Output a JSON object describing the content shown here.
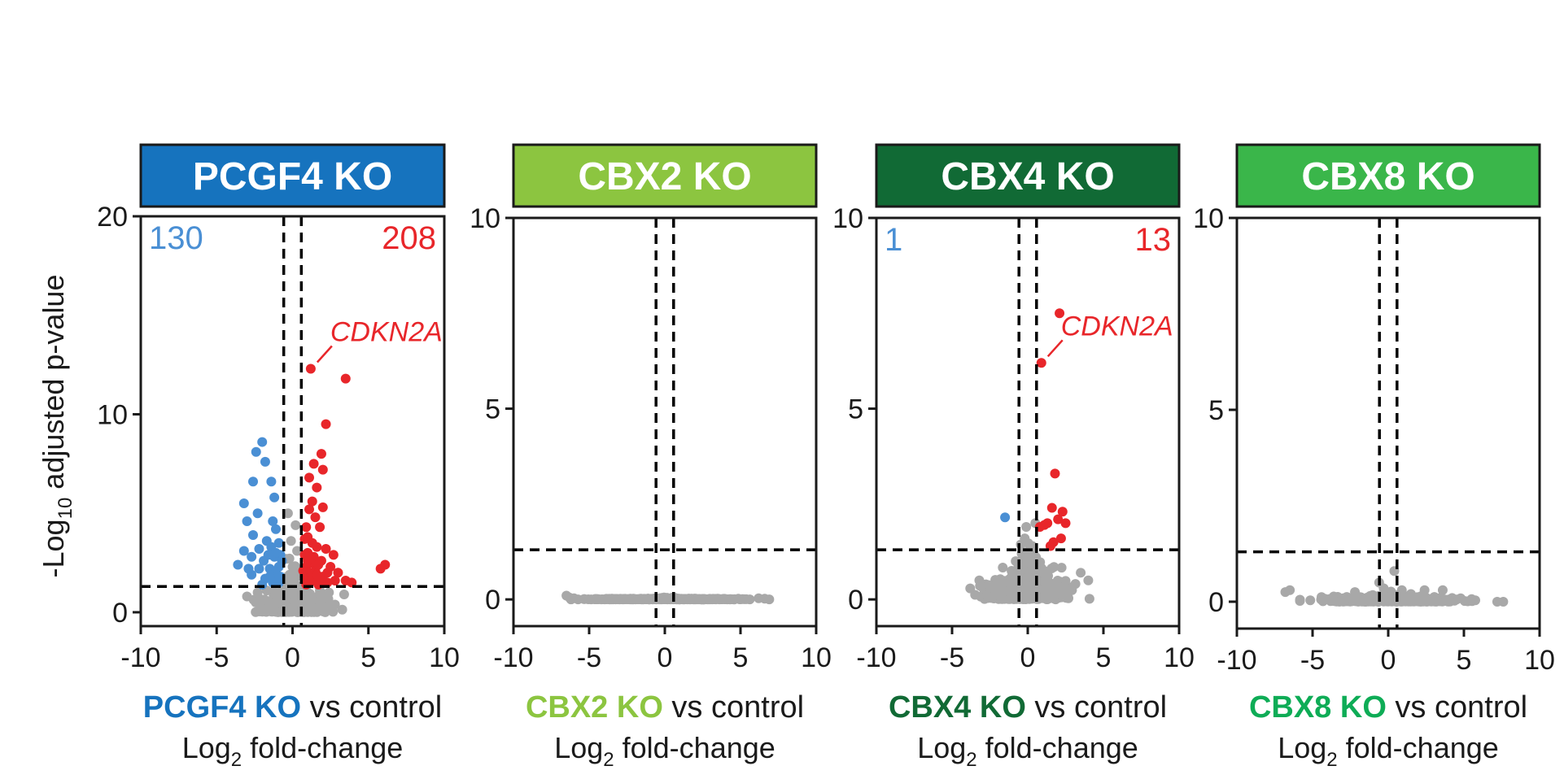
{
  "y_axis_label": {
    "main": "-Log",
    "sub": "10",
    "rest": " adjusted p-value"
  },
  "x_axis_label": {
    "pre": "Log",
    "sub": "2",
    "post": " fold-change"
  },
  "vs_text": " vs control",
  "colors": {
    "down": "#4a8fd4",
    "up": "#e8262a",
    "ns": "#a8a8a8"
  },
  "chart_data": [
    {
      "type": "scatter",
      "title": "PCGF4 KO",
      "header_color": "#1673be",
      "xlabel_gene": "PCGF4 KO",
      "xlabel_color": "#1673be",
      "xlim": [
        -10,
        10
      ],
      "ylim": [
        -0.7,
        20
      ],
      "xticks": [
        -10,
        -5,
        0,
        5,
        10
      ],
      "yticks": [
        0,
        10,
        20
      ],
      "thresholds": {
        "x": [
          -0.58,
          0.58
        ],
        "y": 1.3
      },
      "counts": {
        "down": "130",
        "up": "208"
      },
      "annotation": {
        "label": "CDKN2A",
        "point": [
          1.2,
          12.3
        ]
      },
      "cloud": {
        "n": 650,
        "sx": 1.0,
        "sy": 0.35,
        "xr": [
          -4.2,
          4.5
        ]
      },
      "points_down": [
        [
          -2.0,
          8.6
        ],
        [
          -2.4,
          8.1
        ],
        [
          -1.8,
          7.6
        ],
        [
          -2.6,
          6.6
        ],
        [
          -1.4,
          6.6
        ],
        [
          -3.2,
          5.5
        ],
        [
          -1.2,
          5.8
        ],
        [
          -2.3,
          5.0
        ],
        [
          -1.3,
          4.6
        ],
        [
          -3.0,
          4.6
        ],
        [
          -1.1,
          4.2
        ],
        [
          -2.6,
          3.9
        ],
        [
          -1.7,
          3.6
        ],
        [
          -3.2,
          3.1
        ],
        [
          -2.2,
          3.2
        ],
        [
          -1.4,
          3.3
        ],
        [
          -0.9,
          3.5
        ],
        [
          -2.7,
          2.8
        ],
        [
          -1.9,
          2.6
        ],
        [
          -1.2,
          2.8
        ],
        [
          -0.8,
          2.9
        ],
        [
          -3.6,
          2.4
        ],
        [
          -2.2,
          2.2
        ],
        [
          -1.5,
          2.2
        ],
        [
          -0.9,
          2.3
        ],
        [
          -1.1,
          2.0
        ],
        [
          -2.7,
          1.9
        ],
        [
          -1.8,
          1.7
        ],
        [
          -0.8,
          1.8
        ],
        [
          -1.3,
          1.5
        ],
        [
          -2.0,
          1.4
        ],
        [
          -0.9,
          1.5
        ],
        [
          -1.1,
          3.0
        ],
        [
          -1.6,
          2.9
        ],
        [
          -0.7,
          2.6
        ],
        [
          -2.9,
          2.2
        ],
        [
          -1.0,
          1.6
        ],
        [
          -1.5,
          1.8
        ]
      ],
      "points_up": [
        [
          1.2,
          12.3
        ],
        [
          3.5,
          11.8
        ],
        [
          2.2,
          9.5
        ],
        [
          1.9,
          8.0
        ],
        [
          1.4,
          7.5
        ],
        [
          2.0,
          7.2
        ],
        [
          1.1,
          6.8
        ],
        [
          1.6,
          6.3
        ],
        [
          1.3,
          5.6
        ],
        [
          2.0,
          5.3
        ],
        [
          1.1,
          5.2
        ],
        [
          1.5,
          4.8
        ],
        [
          0.9,
          4.3
        ],
        [
          1.8,
          4.3
        ],
        [
          1.0,
          3.8
        ],
        [
          1.3,
          3.5
        ],
        [
          0.8,
          3.7
        ],
        [
          1.6,
          3.3
        ],
        [
          2.2,
          3.2
        ],
        [
          1.0,
          3.0
        ],
        [
          1.4,
          2.8
        ],
        [
          0.8,
          2.9
        ],
        [
          1.9,
          2.6
        ],
        [
          1.2,
          2.5
        ],
        [
          2.5,
          2.3
        ],
        [
          0.9,
          2.3
        ],
        [
          1.5,
          2.1
        ],
        [
          3.0,
          2.0
        ],
        [
          1.1,
          1.9
        ],
        [
          2.0,
          1.8
        ],
        [
          0.8,
          1.8
        ],
        [
          1.4,
          1.7
        ],
        [
          3.5,
          1.6
        ],
        [
          2.3,
          1.5
        ],
        [
          1.0,
          1.5
        ],
        [
          1.7,
          1.4
        ],
        [
          0.9,
          1.4
        ],
        [
          5.8,
          2.2
        ],
        [
          6.1,
          2.4
        ],
        [
          3.9,
          1.5
        ],
        [
          2.8,
          1.6
        ],
        [
          1.2,
          2.0
        ],
        [
          1.7,
          2.4
        ],
        [
          2.7,
          2.9
        ],
        [
          0.7,
          2.1
        ],
        [
          1.3,
          1.6
        ],
        [
          1.9,
          1.5
        ],
        [
          1.0,
          2.6
        ],
        [
          2.3,
          2.0
        ],
        [
          1.6,
          1.9
        ]
      ],
      "points_ns_extra": [
        [
          -0.3,
          5.0
        ],
        [
          0.2,
          4.4
        ],
        [
          -0.1,
          3.6
        ],
        [
          0.3,
          3.1
        ],
        [
          -0.4,
          2.7
        ],
        [
          0.0,
          2.3
        ],
        [
          0.4,
          2.0
        ],
        [
          -0.2,
          1.9
        ],
        [
          0.1,
          1.7
        ],
        [
          -2.3,
          1.0
        ],
        [
          2.4,
          1.0
        ],
        [
          -3.0,
          0.8
        ],
        [
          3.4,
          0.9
        ],
        [
          -1.7,
          1.1
        ],
        [
          1.8,
          1.1
        ]
      ]
    },
    {
      "type": "scatter",
      "title": "CBX2 KO",
      "header_color": "#8cc540",
      "xlabel_gene": "CBX2 KO",
      "xlabel_color": "#8cc540",
      "xlim": [
        -10,
        10
      ],
      "ylim": [
        -0.7,
        10
      ],
      "xticks": [
        -10,
        -5,
        0,
        5,
        10
      ],
      "yticks": [
        0,
        5,
        10
      ],
      "thresholds": {
        "x": [
          -0.58,
          0.58
        ],
        "y": 1.3
      },
      "counts": {
        "down": "",
        "up": ""
      },
      "cloud": {
        "n": 420,
        "sx": 2.4,
        "sy": 0.008,
        "xr": [
          -6.2,
          6.8
        ]
      },
      "points_down": [],
      "points_up": [],
      "points_ns_extra": [
        [
          -6.5,
          0.1
        ],
        [
          -6.3,
          0.05
        ],
        [
          6.9,
          0.0
        ],
        [
          6.6,
          0.02
        ],
        [
          -6.0,
          0.03
        ],
        [
          6.2,
          0.03
        ],
        [
          0.5,
          0.05
        ],
        [
          -0.2,
          0.04
        ]
      ]
    },
    {
      "type": "scatter",
      "title": "CBX4 KO",
      "header_color": "#116a35",
      "xlabel_gene": "CBX4 KO",
      "xlabel_color": "#116a35",
      "xlim": [
        -10,
        10
      ],
      "ylim": [
        -0.7,
        10
      ],
      "xticks": [
        -10,
        -5,
        0,
        5,
        10
      ],
      "yticks": [
        0,
        5,
        10
      ],
      "thresholds": {
        "x": [
          -0.58,
          0.58
        ],
        "y": 1.3
      },
      "counts": {
        "down": "1",
        "up": "13"
      },
      "annotation": {
        "label": "CDKN2A",
        "point": [
          0.9,
          6.2
        ]
      },
      "cloud": {
        "n": 520,
        "sx": 1.3,
        "sy": 0.25,
        "xr": [
          -3.8,
          4.2
        ]
      },
      "points_down": [
        [
          -1.5,
          2.15
        ]
      ],
      "points_up": [
        [
          2.1,
          7.5
        ],
        [
          0.9,
          6.2
        ],
        [
          1.8,
          3.3
        ],
        [
          1.6,
          2.4
        ],
        [
          2.3,
          2.3
        ],
        [
          2.0,
          2.1
        ],
        [
          2.5,
          2.0
        ],
        [
          1.1,
          1.95
        ],
        [
          0.8,
          1.9
        ],
        [
          2.2,
          1.6
        ],
        [
          1.7,
          1.5
        ],
        [
          1.5,
          1.4
        ],
        [
          1.3,
          2.0
        ]
      ],
      "points_ns_extra": [
        [
          -0.2,
          1.6
        ],
        [
          0.3,
          1.4
        ],
        [
          -0.4,
          1.2
        ],
        [
          0.5,
          2.0
        ],
        [
          3.5,
          0.7
        ],
        [
          4.0,
          0.5
        ],
        [
          -3.2,
          0.5
        ],
        [
          -0.1,
          1.9
        ],
        [
          0.1,
          1.1
        ]
      ]
    },
    {
      "type": "scatter",
      "title": "CBX8 KO",
      "header_color": "#3ab64a",
      "xlabel_gene": "CBX8 KO",
      "xlabel_color": "#0eac56",
      "xlim": [
        -10,
        10
      ],
      "ylim": [
        -0.7,
        10
      ],
      "xticks": [
        -10,
        -5,
        0,
        5,
        10
      ],
      "yticks": [
        0,
        5,
        10
      ],
      "thresholds": {
        "x": [
          -0.58,
          0.58
        ],
        "y": 1.3
      },
      "counts": {
        "down": "",
        "up": ""
      },
      "cloud": {
        "n": 440,
        "sx": 2.2,
        "sy": 0.05,
        "xr": [
          -6.0,
          7.6
        ]
      },
      "points_down": [],
      "points_up": [],
      "points_ns_extra": [
        [
          0.4,
          0.8
        ],
        [
          -0.6,
          0.5
        ],
        [
          -0.3,
          0.35
        ],
        [
          3.6,
          0.3
        ],
        [
          -2.2,
          0.25
        ],
        [
          -6.5,
          0.3
        ],
        [
          -6.8,
          0.25
        ],
        [
          2.4,
          0.3
        ],
        [
          1.5,
          0.2
        ],
        [
          7.2,
          0.0
        ],
        [
          7.6,
          0.0
        ],
        [
          5.5,
          0.05
        ],
        [
          -1.2,
          0.15
        ],
        [
          0.9,
          0.3
        ]
      ]
    }
  ]
}
